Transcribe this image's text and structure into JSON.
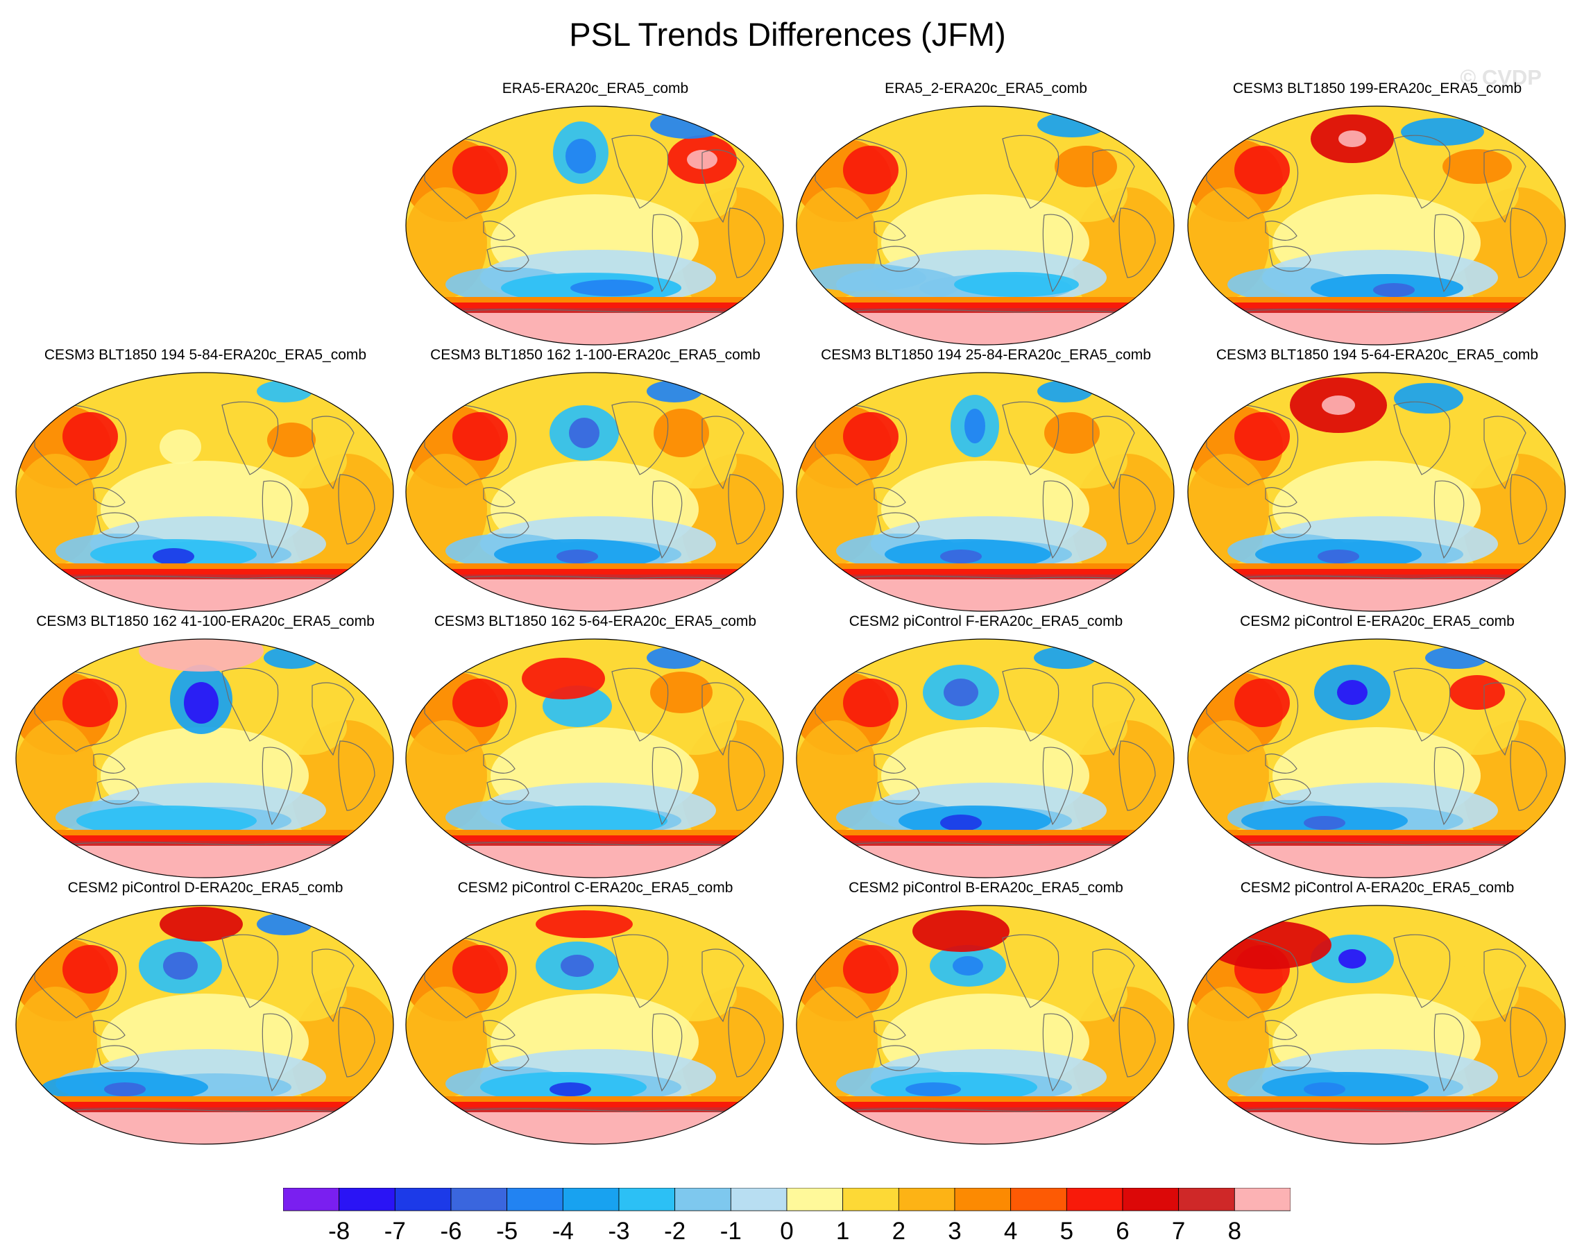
{
  "title": "PSL Trends Differences (JFM)",
  "watermark": "© CVDP",
  "chart_data": {
    "type": "heatmap",
    "projection": "robinson-like global maps, Pacific-centered",
    "field": "sea level pressure trend difference",
    "season": "JFM",
    "panels": [
      {
        "title": "ERA5-ERA20c_ERA5_comb"
      },
      {
        "title": "ERA5_2-ERA20c_ERA5_comb"
      },
      {
        "title": "CESM3 BLT1850 199-ERA20c_ERA5_comb"
      },
      {
        "title": "CESM3 BLT1850 194 5-84-ERA20c_ERA5_comb"
      },
      {
        "title": "CESM3 BLT1850 162 1-100-ERA20c_ERA5_comb"
      },
      {
        "title": "CESM3 BLT1850 194 25-84-ERA20c_ERA5_comb"
      },
      {
        "title": "CESM3 BLT1850 194 5-64-ERA20c_ERA5_comb"
      },
      {
        "title": "CESM3 BLT1850 162 41-100-ERA20c_ERA5_comb"
      },
      {
        "title": "CESM3 BLT1850 162 5-64-ERA20c_ERA5_comb"
      },
      {
        "title": "CESM2 piControl F-ERA20c_ERA5_comb"
      },
      {
        "title": "CESM2 piControl E-ERA20c_ERA5_comb"
      },
      {
        "title": "CESM2 piControl D-ERA20c_ERA5_comb"
      },
      {
        "title": "CESM2 piControl C-ERA20c_ERA5_comb"
      },
      {
        "title": "CESM2 piControl B-ERA20c_ERA5_comb"
      },
      {
        "title": "CESM2 piControl A-ERA20c_ERA5_comb"
      }
    ],
    "colorbar": {
      "labels": [
        "-8",
        "-7",
        "-6",
        "-5",
        "-4",
        "-3",
        "-2",
        "-1",
        "0",
        "1",
        "2",
        "3",
        "4",
        "5",
        "6",
        "7",
        "8"
      ],
      "colors": [
        "#7a1ff0",
        "#2a14f5",
        "#1c3ae8",
        "#3a66de",
        "#2283f2",
        "#18a2f0",
        "#2cc0f5",
        "#7ec8ee",
        "#b8def2",
        "#fff99a",
        "#fdd936",
        "#fdb315",
        "#fc8a02",
        "#fd5a04",
        "#f81a0a",
        "#dc0808",
        "#cf2828",
        "#fcb2b4"
      ]
    }
  }
}
